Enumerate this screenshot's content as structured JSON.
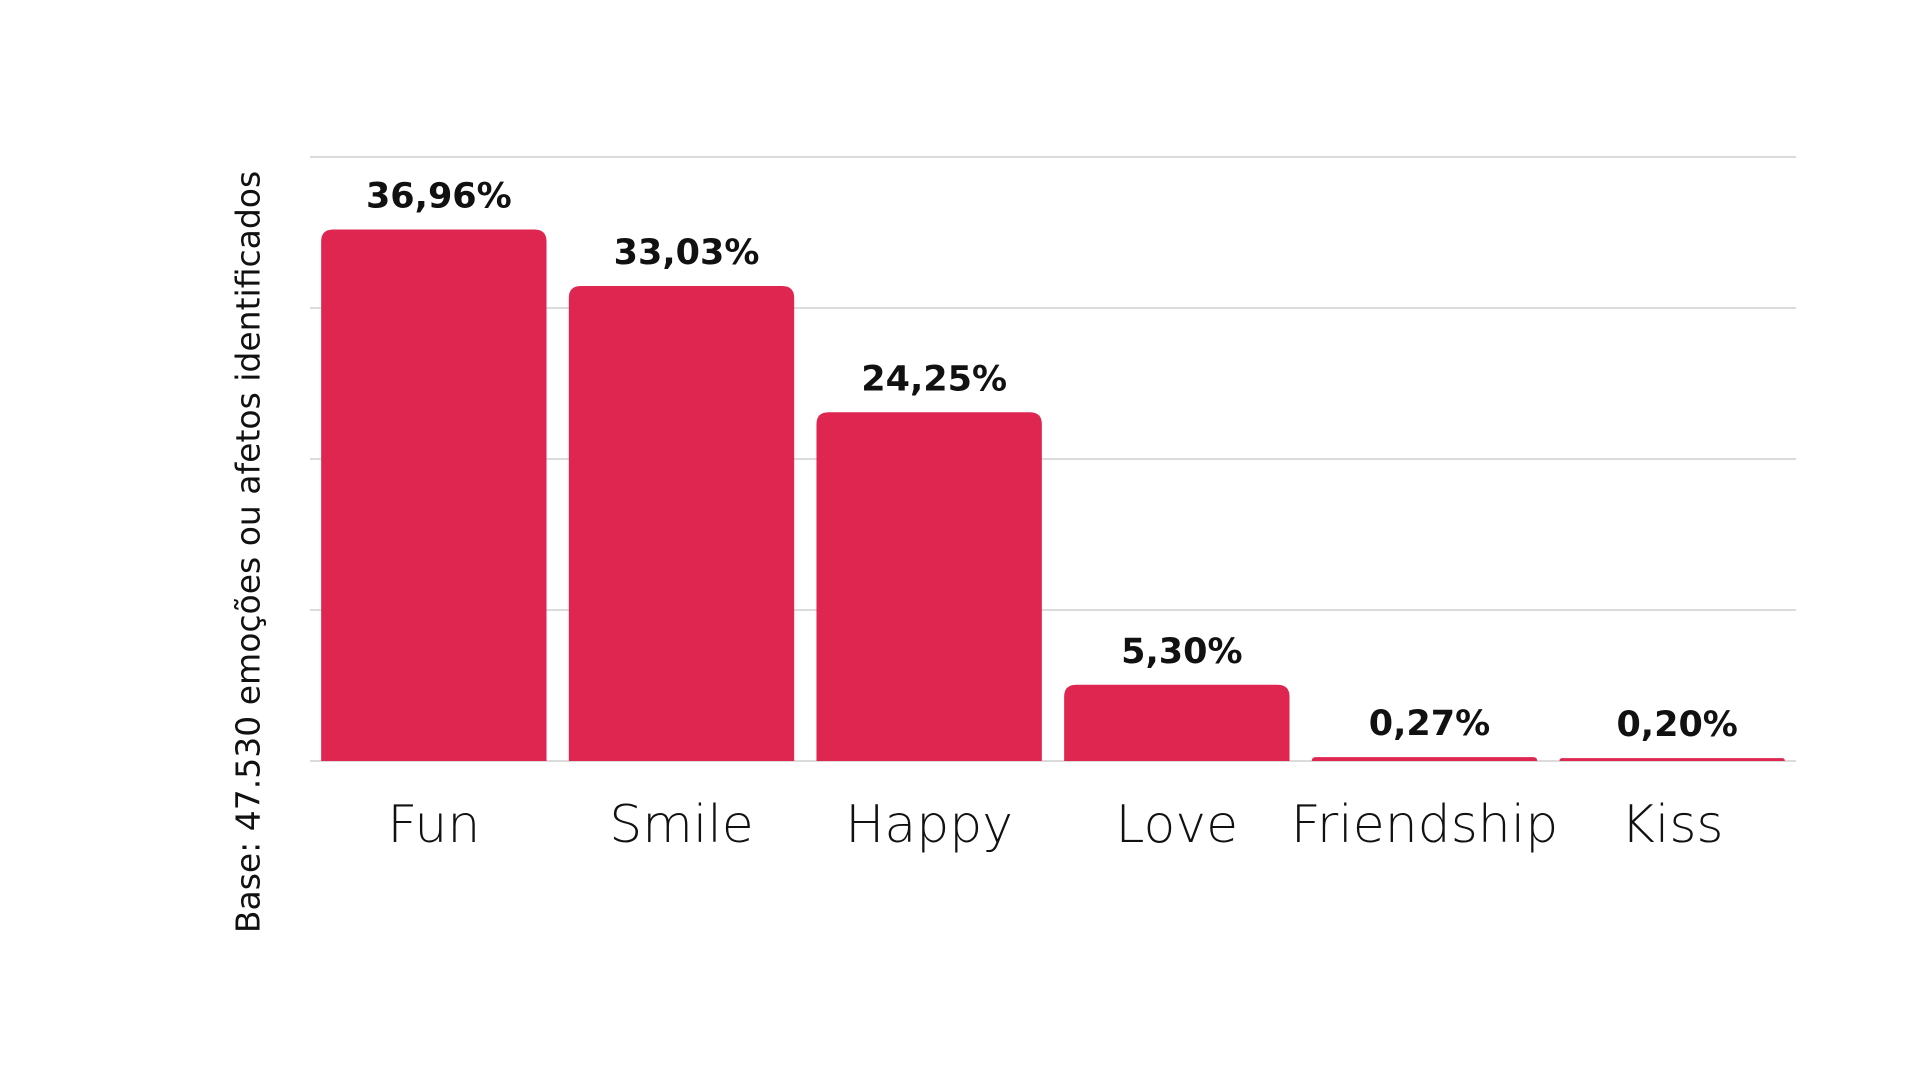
{
  "chart_data": {
    "type": "bar",
    "y_label": "Base: 47.530 emoções ou afetos identificados",
    "categories": [
      "Fun",
      "Smile",
      "Happy",
      "Love",
      "Friendship",
      "Kiss"
    ],
    "values": [
      36.96,
      33.03,
      24.25,
      5.3,
      0.27,
      0.2
    ],
    "value_labels": [
      "36,96%",
      "33,03%",
      "24,25%",
      "5,30%",
      "0,27%",
      "0,20%"
    ],
    "color": "#de2651",
    "ylim": [
      0,
      42
    ],
    "yticks": [
      0,
      10.5,
      21,
      31.5,
      42
    ],
    "grid": true
  }
}
